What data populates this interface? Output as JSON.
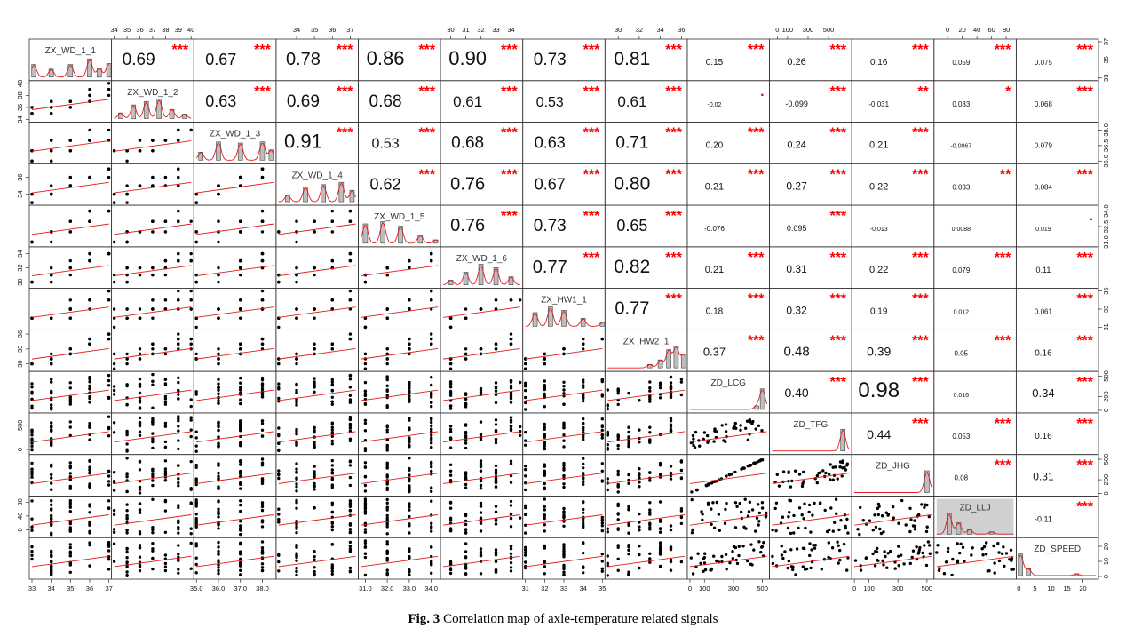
{
  "figure": {
    "caption_label": "Fig. 3",
    "caption_text": " Correlation map of axle-temperature related signals"
  },
  "chart_data": {
    "type": "scatter-matrix",
    "variables": [
      "ZX_WD_1_1",
      "ZX_WD_1_2",
      "ZX_WD_1_3",
      "ZX_WD_1_4",
      "ZX_WD_1_5",
      "ZX_WD_1_6",
      "ZX_HW1_1",
      "ZX_HW2_1",
      "ZD_LCG",
      "ZD_TFG",
      "ZD_JHG",
      "ZD_LLJ",
      "ZD_SPEED"
    ],
    "correlation_text": [
      [
        null,
        "0.69",
        "0.67",
        "0.78",
        "0.86",
        "0.90",
        "0.73",
        "0.81",
        "0.15",
        "0.26",
        "0.16",
        "0.059",
        "0.075"
      ],
      [
        null,
        null,
        "0.63",
        "0.69",
        "0.68",
        "0.61",
        "0.53",
        "0.61",
        "-0.02",
        "-0.099",
        "-0.031",
        "0.033",
        "0.068"
      ],
      [
        null,
        null,
        null,
        "0.91",
        "0.53",
        "0.68",
        "0.63",
        "0.71",
        "0.20",
        "0.24",
        "0.21",
        "-0.0067",
        "0.079"
      ],
      [
        null,
        null,
        null,
        null,
        "0.62",
        "0.76",
        "0.67",
        "0.80",
        "0.21",
        "0.27",
        "0.22",
        "0.033",
        "0.084"
      ],
      [
        null,
        null,
        null,
        null,
        null,
        "0.76",
        "0.73",
        "0.65",
        "-0.076",
        "0.095",
        "-0.013",
        "0.0088",
        "0.019"
      ],
      [
        null,
        null,
        null,
        null,
        null,
        null,
        "0.77",
        "0.82",
        "0.21",
        "0.31",
        "0.22",
        "0.079",
        "0.11"
      ],
      [
        null,
        null,
        null,
        null,
        null,
        null,
        null,
        "0.77",
        "0.18",
        "0.32",
        "0.19",
        "0.012",
        "0.061"
      ],
      [
        null,
        null,
        null,
        null,
        null,
        null,
        null,
        null,
        "0.37",
        "0.48",
        "0.39",
        "0.05",
        "0.16"
      ],
      [
        null,
        null,
        null,
        null,
        null,
        null,
        null,
        null,
        null,
        "0.40",
        "0.98",
        "0.016",
        "0.34"
      ],
      [
        null,
        null,
        null,
        null,
        null,
        null,
        null,
        null,
        null,
        null,
        "0.44",
        "0.053",
        "0.16"
      ],
      [
        null,
        null,
        null,
        null,
        null,
        null,
        null,
        null,
        null,
        null,
        null,
        "0.08",
        "0.31"
      ],
      [
        null,
        null,
        null,
        null,
        null,
        null,
        null,
        null,
        null,
        null,
        null,
        null,
        "-0.11"
      ],
      [
        null,
        null,
        null,
        null,
        null,
        null,
        null,
        null,
        null,
        null,
        null,
        null,
        null
      ]
    ],
    "correlation_values": [
      [
        null,
        0.69,
        0.67,
        0.78,
        0.86,
        0.9,
        0.73,
        0.81,
        0.15,
        0.26,
        0.16,
        0.059,
        0.075
      ],
      [
        null,
        null,
        0.63,
        0.69,
        0.68,
        0.61,
        0.53,
        0.61,
        -0.02,
        -0.099,
        -0.031,
        0.033,
        0.068
      ],
      [
        null,
        null,
        null,
        0.91,
        0.53,
        0.68,
        0.63,
        0.71,
        0.2,
        0.24,
        0.21,
        -0.0067,
        0.079
      ],
      [
        null,
        null,
        null,
        null,
        0.62,
        0.76,
        0.67,
        0.8,
        0.21,
        0.27,
        0.22,
        0.033,
        0.084
      ],
      [
        null,
        null,
        null,
        null,
        null,
        0.76,
        0.73,
        0.65,
        -0.076,
        0.095,
        -0.013,
        0.0088,
        0.019
      ],
      [
        null,
        null,
        null,
        null,
        null,
        null,
        0.77,
        0.82,
        0.21,
        0.31,
        0.22,
        0.079,
        0.11
      ],
      [
        null,
        null,
        null,
        null,
        null,
        null,
        null,
        0.77,
        0.18,
        0.32,
        0.19,
        0.012,
        0.061
      ],
      [
        null,
        null,
        null,
        null,
        null,
        null,
        null,
        null,
        0.37,
        0.48,
        0.39,
        0.05,
        0.16
      ],
      [
        null,
        null,
        null,
        null,
        null,
        null,
        null,
        null,
        null,
        0.4,
        0.98,
        0.016,
        0.34
      ],
      [
        null,
        null,
        null,
        null,
        null,
        null,
        null,
        null,
        null,
        null,
        0.44,
        0.053,
        0.16
      ],
      [
        null,
        null,
        null,
        null,
        null,
        null,
        null,
        null,
        null,
        null,
        null,
        0.08,
        0.31
      ],
      [
        null,
        null,
        null,
        null,
        null,
        null,
        null,
        null,
        null,
        null,
        null,
        null,
        -0.11
      ],
      [
        null,
        null,
        null,
        null,
        null,
        null,
        null,
        null,
        null,
        null,
        null,
        null,
        null
      ]
    ],
    "significance": [
      [
        null,
        "***",
        "***",
        "***",
        "***",
        "***",
        "***",
        "***",
        "***",
        "***",
        "***",
        "***",
        "***"
      ],
      [
        null,
        null,
        "***",
        "***",
        "***",
        "***",
        "***",
        "***",
        ".",
        "***",
        "**",
        "*",
        "***"
      ],
      [
        null,
        null,
        null,
        "***",
        "***",
        "***",
        "***",
        "***",
        "***",
        "***",
        "***",
        "",
        ""
      ],
      [
        null,
        null,
        null,
        null,
        "***",
        "***",
        "***",
        "***",
        "***",
        "***",
        "***",
        "**",
        "***"
      ],
      [
        null,
        null,
        null,
        null,
        null,
        "***",
        "***",
        "***",
        "",
        "***",
        "",
        "",
        "."
      ],
      [
        null,
        null,
        null,
        null,
        null,
        null,
        "***",
        "***",
        "***",
        "***",
        "***",
        "***",
        "***"
      ],
      [
        null,
        null,
        null,
        null,
        null,
        null,
        null,
        "***",
        "***",
        "***",
        "***",
        "",
        "***"
      ],
      [
        null,
        null,
        null,
        null,
        null,
        null,
        null,
        null,
        "***",
        "***",
        "***",
        "***",
        "***"
      ],
      [
        null,
        null,
        null,
        null,
        null,
        null,
        null,
        null,
        null,
        "***",
        "***",
        "",
        "***"
      ],
      [
        null,
        null,
        null,
        null,
        null,
        null,
        null,
        null,
        null,
        null,
        "***",
        "***",
        "***"
      ],
      [
        null,
        null,
        null,
        null,
        null,
        null,
        null,
        null,
        null,
        null,
        null,
        "***",
        "***"
      ],
      [
        null,
        null,
        null,
        null,
        null,
        null,
        null,
        null,
        null,
        null,
        null,
        null,
        "***"
      ],
      [
        null,
        null,
        null,
        null,
        null,
        null,
        null,
        null,
        null,
        null,
        null,
        null,
        null
      ]
    ],
    "axis_ranges": [
      [
        33,
        37
      ],
      [
        34,
        40
      ],
      [
        35,
        38.5
      ],
      [
        33,
        37.3
      ],
      [
        30.8,
        34.3
      ],
      [
        29.5,
        34.6
      ],
      [
        31,
        35
      ],
      [
        29,
        36.3
      ],
      [
        0,
        530
      ],
      [
        -50,
        700
      ],
      [
        0,
        530
      ],
      [
        -15,
        90
      ],
      [
        0,
        24
      ]
    ],
    "tick_values": [
      [
        33,
        34,
        35,
        36,
        37
      ],
      [
        34,
        35,
        36,
        37,
        38,
        39,
        40
      ],
      [
        35.0,
        36.0,
        37.0,
        38.0
      ],
      [
        34,
        35,
        36,
        37
      ],
      [
        31.0,
        32.0,
        33.0,
        34.0
      ],
      [
        30,
        31,
        32,
        33,
        34
      ],
      [
        31,
        32,
        33,
        34,
        35
      ],
      [
        30,
        32,
        34,
        36
      ],
      [
        0,
        100,
        300,
        500
      ],
      [
        0,
        100,
        300,
        500
      ],
      [
        0,
        100,
        300,
        500
      ],
      [
        0,
        20,
        40,
        60,
        80
      ],
      [
        0,
        5,
        10,
        15,
        20
      ]
    ],
    "left_tick_values": [
      null,
      [
        34,
        36,
        38,
        40
      ],
      null,
      [
        34,
        36
      ],
      null,
      [
        30,
        32,
        34
      ],
      null,
      [
        30,
        33,
        36
      ],
      null,
      [
        0,
        500
      ],
      null,
      [
        0,
        40,
        80
      ],
      null
    ],
    "right_tick_values": [
      [
        33,
        35,
        37
      ],
      null,
      [
        35.0,
        36.5,
        38.0
      ],
      null,
      [
        31.0,
        32.5,
        34.0
      ],
      null,
      [
        31,
        33,
        35
      ],
      null,
      [
        0,
        200,
        500
      ],
      null,
      [
        0,
        200,
        500
      ],
      null,
      [
        0,
        10,
        20
      ]
    ],
    "left_tick_labels": [
      null,
      [
        "34",
        "36",
        "38",
        "40"
      ],
      null,
      [
        "34",
        "36"
      ],
      null,
      [
        "30",
        "32",
        "34"
      ],
      null,
      [
        "30",
        "33",
        "36"
      ],
      null,
      [
        "0",
        "500"
      ],
      null,
      [
        "0",
        "40",
        "80"
      ],
      null
    ],
    "right_tick_labels": [
      [
        "33",
        "35",
        "37"
      ],
      null,
      [
        "35.0",
        "36.5",
        "38.0"
      ],
      null,
      [
        "31.0",
        "32.5",
        "34.0"
      ],
      null,
      [
        "31",
        "33",
        "35"
      ],
      null,
      [
        "0",
        "200",
        "500"
      ],
      null,
      [
        "0",
        "200",
        "500"
      ],
      null,
      [
        "0",
        "10",
        "20"
      ]
    ],
    "top_tick_labels": [
      null,
      [
        "34",
        "35",
        "36",
        "37",
        "38",
        "39",
        "40"
      ],
      null,
      [
        "34",
        "35",
        "36",
        "37"
      ],
      null,
      [
        "30",
        "31",
        "32",
        "33",
        "34"
      ],
      null,
      [
        "30",
        "32",
        "34",
        "36"
      ],
      null,
      [
        "0",
        "100",
        "300",
        "500"
      ],
      null,
      [
        "0",
        "20",
        "40",
        "60",
        "80"
      ],
      null
    ],
    "bottom_tick_labels": [
      [
        "33",
        "34",
        "35",
        "36",
        "37"
      ],
      null,
      [
        "35.0",
        "36.0",
        "37.0",
        "38.0"
      ],
      null,
      [
        "31.0",
        "32.0",
        "33.0",
        "34.0"
      ],
      null,
      [
        "31",
        "32",
        "33",
        "34",
        "35"
      ],
      null,
      [
        "0",
        "100",
        "300",
        "500"
      ],
      null,
      [
        "0",
        "100",
        "300",
        "500"
      ],
      null,
      [
        "0",
        "5",
        "10",
        "15",
        "20"
      ]
    ],
    "diagonal_histogram_peaks": [
      [
        [
          33.1,
          0.55
        ],
        [
          34.0,
          0.35
        ],
        [
          35.0,
          0.55
        ],
        [
          36.0,
          0.8
        ],
        [
          36.5,
          0.4
        ],
        [
          37.0,
          0.6
        ]
      ],
      [
        [
          34.5,
          0.25
        ],
        [
          35.5,
          0.6
        ],
        [
          36.5,
          0.75
        ],
        [
          37.5,
          0.85
        ],
        [
          38.5,
          0.4
        ],
        [
          39.5,
          0.2
        ]
      ],
      [
        [
          35.2,
          0.35
        ],
        [
          36.0,
          0.8
        ],
        [
          37.0,
          0.75
        ],
        [
          38.0,
          0.8
        ],
        [
          38.4,
          0.45
        ]
      ],
      [
        [
          33.5,
          0.3
        ],
        [
          34.5,
          0.65
        ],
        [
          35.5,
          0.75
        ],
        [
          36.5,
          0.85
        ],
        [
          37.1,
          0.5
        ]
      ],
      [
        [
          31.0,
          0.85
        ],
        [
          31.8,
          0.95
        ],
        [
          32.6,
          0.75
        ],
        [
          33.5,
          0.35
        ],
        [
          34.2,
          0.15
        ]
      ],
      [
        [
          30.0,
          0.2
        ],
        [
          31.0,
          0.55
        ],
        [
          32.0,
          0.9
        ],
        [
          33.0,
          0.75
        ],
        [
          34.0,
          0.35
        ]
      ],
      [
        [
          31.5,
          0.6
        ],
        [
          32.3,
          0.85
        ],
        [
          33.0,
          0.7
        ],
        [
          34.0,
          0.35
        ],
        [
          35.0,
          0.15
        ]
      ],
      [
        [
          33.0,
          0.15
        ],
        [
          34.0,
          0.35
        ],
        [
          34.8,
          0.8
        ],
        [
          35.5,
          0.95
        ],
        [
          36.2,
          0.6
        ]
      ],
      [
        [
          460,
          0.15
        ],
        [
          500,
          0.9
        ]
      ],
      [
        [
          640,
          0.95
        ]
      ],
      [
        [
          500,
          0.95
        ]
      ],
      [
        [
          2,
          0.9
        ],
        [
          15,
          0.5
        ],
        [
          30,
          0.2
        ],
        [
          60,
          0.1
        ]
      ],
      [
        [
          0.5,
          0.95
        ],
        [
          3,
          0.3
        ],
        [
          18,
          0.08
        ]
      ]
    ]
  }
}
